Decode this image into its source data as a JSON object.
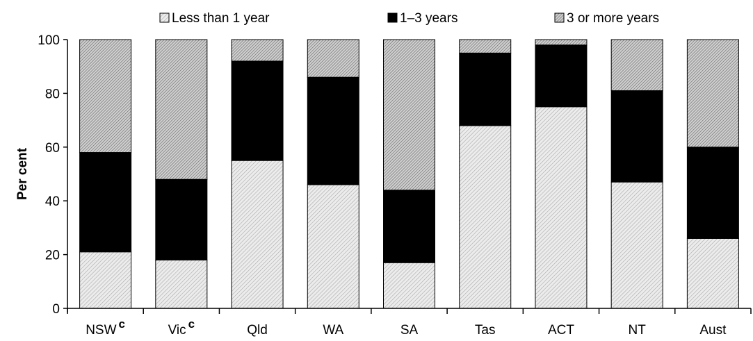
{
  "chart_data": {
    "type": "bar",
    "stacked": true,
    "ylabel": "Per cent",
    "ylim": [
      0,
      100
    ],
    "yticks": [
      0,
      20,
      40,
      60,
      80,
      100
    ],
    "grid": false,
    "legend_position": "top",
    "categories": [
      {
        "label": "NSW",
        "superscript": "c"
      },
      {
        "label": "Vic",
        "superscript": "c"
      },
      {
        "label": "Qld",
        "superscript": ""
      },
      {
        "label": "WA",
        "superscript": ""
      },
      {
        "label": "SA",
        "superscript": ""
      },
      {
        "label": "Tas",
        "superscript": ""
      },
      {
        "label": "ACT",
        "superscript": ""
      },
      {
        "label": "NT",
        "superscript": ""
      },
      {
        "label": "Aust",
        "superscript": ""
      }
    ],
    "series": [
      {
        "name": "Less than 1 year",
        "pattern": "light-hatch",
        "values": [
          21,
          18,
          55,
          46,
          17,
          68,
          75,
          47,
          26
        ]
      },
      {
        "name": "1–3 years",
        "pattern": "solid-black",
        "values": [
          37,
          30,
          37,
          40,
          27,
          27,
          23,
          34,
          34
        ]
      },
      {
        "name": "3 or more years",
        "pattern": "dense-hatch",
        "values": [
          42,
          52,
          8,
          14,
          56,
          5,
          2,
          19,
          40
        ]
      }
    ]
  }
}
